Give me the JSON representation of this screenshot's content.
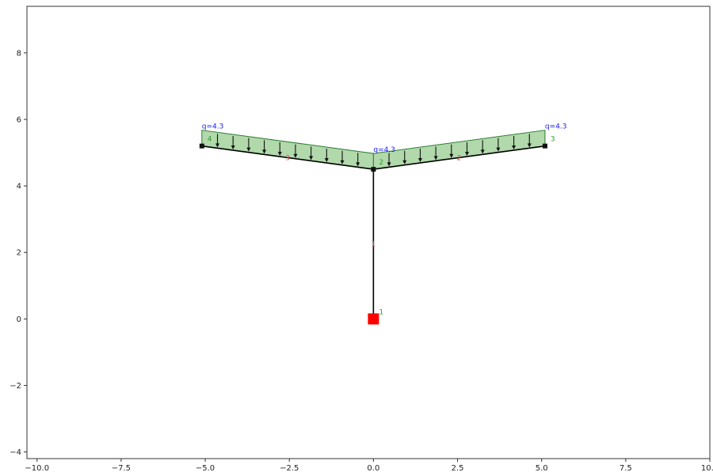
{
  "chart_data": {
    "type": "structure-diagram",
    "xlim": [
      -10.3,
      10.0
    ],
    "ylim": [
      -4.2,
      9.4
    ],
    "x_ticks": [
      {
        "value": -10.0,
        "label": "−10.0"
      },
      {
        "value": -7.5,
        "label": "−7.5"
      },
      {
        "value": -5.0,
        "label": "−5.0"
      },
      {
        "value": -2.5,
        "label": "−2.5"
      },
      {
        "value": 0.0,
        "label": "0.0"
      },
      {
        "value": 2.5,
        "label": "2.5"
      },
      {
        "value": 5.0,
        "label": "5.0"
      },
      {
        "value": 7.5,
        "label": "7.5"
      },
      {
        "value": 10.0,
        "label": "10.0"
      }
    ],
    "y_ticks": [
      {
        "value": -4,
        "label": "−4"
      },
      {
        "value": -2,
        "label": "−2"
      },
      {
        "value": 0,
        "label": "0"
      },
      {
        "value": 2,
        "label": "2"
      },
      {
        "value": 4,
        "label": "4"
      },
      {
        "value": 6,
        "label": "6"
      },
      {
        "value": 8,
        "label": "8"
      }
    ],
    "nodes": [
      {
        "id": "1",
        "x": 0.0,
        "y": 0.0
      },
      {
        "id": "2",
        "x": 0.0,
        "y": 4.5
      },
      {
        "id": "3",
        "x": 5.1,
        "y": 5.2
      },
      {
        "id": "4",
        "x": -5.1,
        "y": 5.2
      }
    ],
    "elements": [
      {
        "id": "1",
        "from": "1",
        "to": "2"
      },
      {
        "id": "2",
        "from": "2",
        "to": "3"
      },
      {
        "id": "3",
        "from": "2",
        "to": "4"
      }
    ],
    "supports": [
      {
        "node": "1",
        "type": "fixed"
      }
    ],
    "distributed_loads": [
      {
        "element": "3",
        "q": 4.3,
        "start_label": "q=4.3",
        "end_label": ""
      },
      {
        "element": "2",
        "q": 4.3,
        "start_label": "q=4.3",
        "end_label": "q=4.3"
      }
    ],
    "colors": {
      "frame": "#000000",
      "load_fill": "#a8d5a2",
      "load_edge": "#2e7d32",
      "node_label": "#2ca02c",
      "element_label": "#e05050",
      "load_label": "#1a1aff",
      "support": "#ff0000"
    }
  }
}
